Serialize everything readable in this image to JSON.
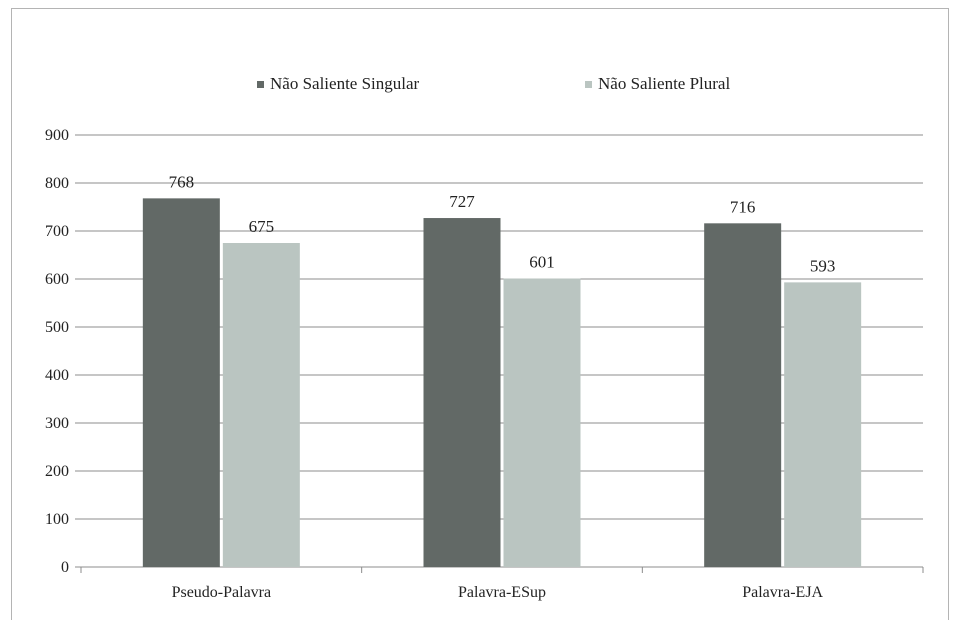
{
  "chart_data": {
    "type": "bar",
    "title": "",
    "xlabel": "",
    "ylabel": "",
    "categories": [
      "Pseudo-Palavra",
      "Palavra-ESup",
      "Palavra-EJA"
    ],
    "series": [
      {
        "name": "Não Saliente Singular",
        "values": [
          768,
          727,
          716
        ],
        "color": "#626966"
      },
      {
        "name": "Não Saliente Plural",
        "values": [
          675,
          601,
          593
        ],
        "color": "#bac5c1"
      }
    ],
    "ylim": [
      0,
      900
    ],
    "yticks": [
      "0",
      "100",
      "200",
      "300",
      "400",
      "500",
      "600",
      "700",
      "800",
      "900"
    ],
    "grid": true,
    "legend": "top-center",
    "data_labels": true,
    "gridline_color": "#8c8c8c",
    "axis_color": "#8c8c8c"
  }
}
